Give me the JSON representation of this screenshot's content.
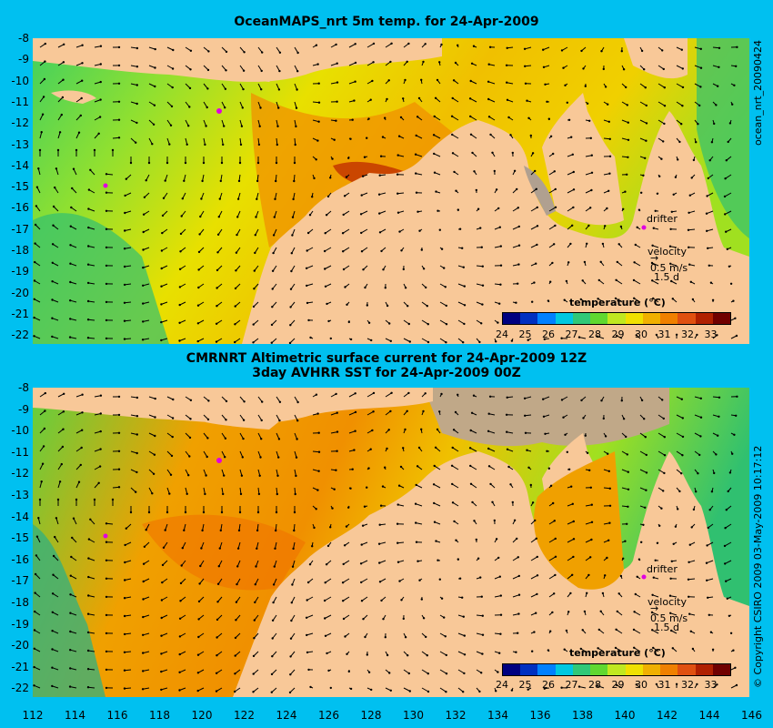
{
  "top_title": "OceanMAPS_nrt 5m temp. for 24-Apr-2009",
  "bottom_title_line1": "CMRNRT Altimetric surface current for 24-Apr-2009 12Z",
  "bottom_title_line2": "3day AVHRR SST for 24-Apr-2009 00Z",
  "side_top": "ocean_nrt_20090424",
  "side_bottom": "© Copyright CSIRO 2009  03-May-2009 10:17:12",
  "y_ticks": [
    "-8",
    "-9",
    "-10",
    "-11",
    "-12",
    "-13",
    "-14",
    "-15",
    "-16",
    "-17",
    "-18",
    "-19",
    "-20",
    "-21",
    "-22"
  ],
  "x_ticks": [
    "112",
    "114",
    "116",
    "118",
    "120",
    "122",
    "124",
    "126",
    "128",
    "130",
    "132",
    "134",
    "136",
    "138",
    "140",
    "142",
    "144",
    "146"
  ],
  "legend": {
    "title": "temperature (°C)",
    "ticks": [
      "24",
      "25",
      "26",
      "27",
      "28",
      "29",
      "30",
      "31",
      "32",
      "33"
    ],
    "colors": [
      "#000080",
      "#0030c0",
      "#0080ff",
      "#00c8e0",
      "#30c878",
      "#60d830",
      "#c0e820",
      "#f0e000",
      "#f0b000",
      "#f08000",
      "#e05010",
      "#b02000",
      "#700000"
    ]
  },
  "annotations": {
    "drifter": "drifter",
    "velocity": "velocity",
    "speed": "0.5 m/s",
    "duration": "1.5 d"
  },
  "colors": {
    "background": "#00c0f0",
    "land": "#f8c898",
    "arrow": "#000000",
    "contour": "#40e0e0",
    "drifter": "#e000e0"
  }
}
